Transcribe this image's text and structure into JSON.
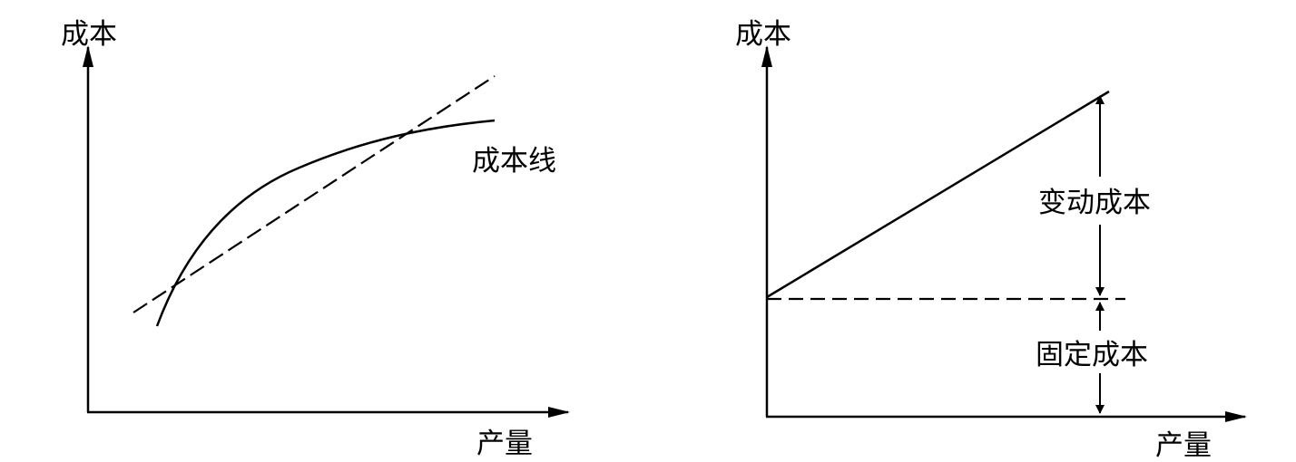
{
  "left_diagram": {
    "y_axis_label": "成本",
    "x_axis_label": "产量",
    "curve_label": "成本线"
  },
  "right_diagram": {
    "y_axis_label": "成本",
    "x_axis_label": "产量",
    "variable_cost_label": "变动成本",
    "fixed_cost_label": "固定成本"
  }
}
